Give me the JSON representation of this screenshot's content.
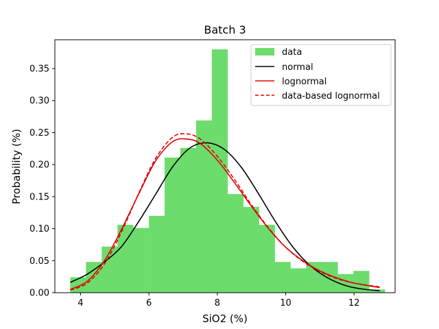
{
  "chart_data": {
    "type": "bar",
    "title": "Batch 3",
    "xlabel": "SiO2 (%)",
    "ylabel": "Probability (%)",
    "xlim": [
      3.25,
      13.2
    ],
    "ylim": [
      0,
      0.395
    ],
    "xticks": [
      4,
      6,
      8,
      10,
      12
    ],
    "yticks": [
      0.0,
      0.05,
      0.1,
      0.15,
      0.2,
      0.25,
      0.3,
      0.35
    ],
    "ytick_labels": [
      "0.00",
      "0.05",
      "0.10",
      "0.15",
      "0.20",
      "0.25",
      "0.30",
      "0.35"
    ],
    "grid": false,
    "legend_position": "top-right",
    "histogram": {
      "name": "data",
      "color": "#6cdc6c",
      "bin_edges": [
        3.7,
        4.16,
        4.62,
        5.08,
        5.54,
        6.0,
        6.46,
        6.92,
        7.38,
        7.84,
        8.3,
        8.76,
        9.22,
        9.68,
        10.14,
        10.6,
        11.06,
        11.52,
        11.98,
        12.44,
        12.9
      ],
      "values": [
        0.024,
        0.048,
        0.072,
        0.106,
        0.101,
        0.12,
        0.211,
        0.226,
        0.269,
        0.38,
        0.154,
        0.134,
        0.106,
        0.048,
        0.038,
        0.048,
        0.048,
        0.029,
        0.034,
        0.005
      ]
    },
    "series": [
      {
        "name": "normal",
        "color": "#000000",
        "dash": "solid",
        "x": [
          3.7,
          4.2,
          4.7,
          5.2,
          5.7,
          6.2,
          6.7,
          7.2,
          7.7,
          8.2,
          8.7,
          9.2,
          9.7,
          10.2,
          10.7,
          11.2,
          11.7,
          12.2,
          12.75
        ],
        "values": [
          0.016,
          0.029,
          0.048,
          0.072,
          0.111,
          0.154,
          0.197,
          0.226,
          0.234,
          0.224,
          0.196,
          0.155,
          0.111,
          0.072,
          0.043,
          0.024,
          0.012,
          0.006,
          0.003
        ]
      },
      {
        "name": "lognormal",
        "color": "#e00000",
        "dash": "solid",
        "x": [
          3.7,
          4.2,
          4.7,
          5.2,
          5.7,
          6.2,
          6.7,
          7.1,
          7.5,
          8.0,
          8.5,
          9.0,
          9.5,
          10.0,
          10.5,
          11.0,
          11.5,
          12.0,
          12.75
        ],
        "values": [
          0.005,
          0.018,
          0.05,
          0.099,
          0.154,
          0.206,
          0.236,
          0.24,
          0.233,
          0.207,
          0.172,
          0.135,
          0.1,
          0.071,
          0.05,
          0.034,
          0.023,
          0.015,
          0.008
        ]
      },
      {
        "name": "data-based lognormal",
        "color": "#e00000",
        "dash": "dashed",
        "x": [
          3.7,
          4.2,
          4.7,
          5.2,
          5.7,
          6.2,
          6.7,
          7.1,
          7.5,
          8.0,
          8.5,
          9.0,
          9.5,
          10.0,
          10.5,
          11.0,
          11.5,
          12.0,
          12.75
        ],
        "values": [
          0.004,
          0.015,
          0.045,
          0.095,
          0.155,
          0.21,
          0.243,
          0.248,
          0.24,
          0.213,
          0.177,
          0.137,
          0.101,
          0.071,
          0.049,
          0.033,
          0.022,
          0.015,
          0.009
        ]
      }
    ]
  }
}
